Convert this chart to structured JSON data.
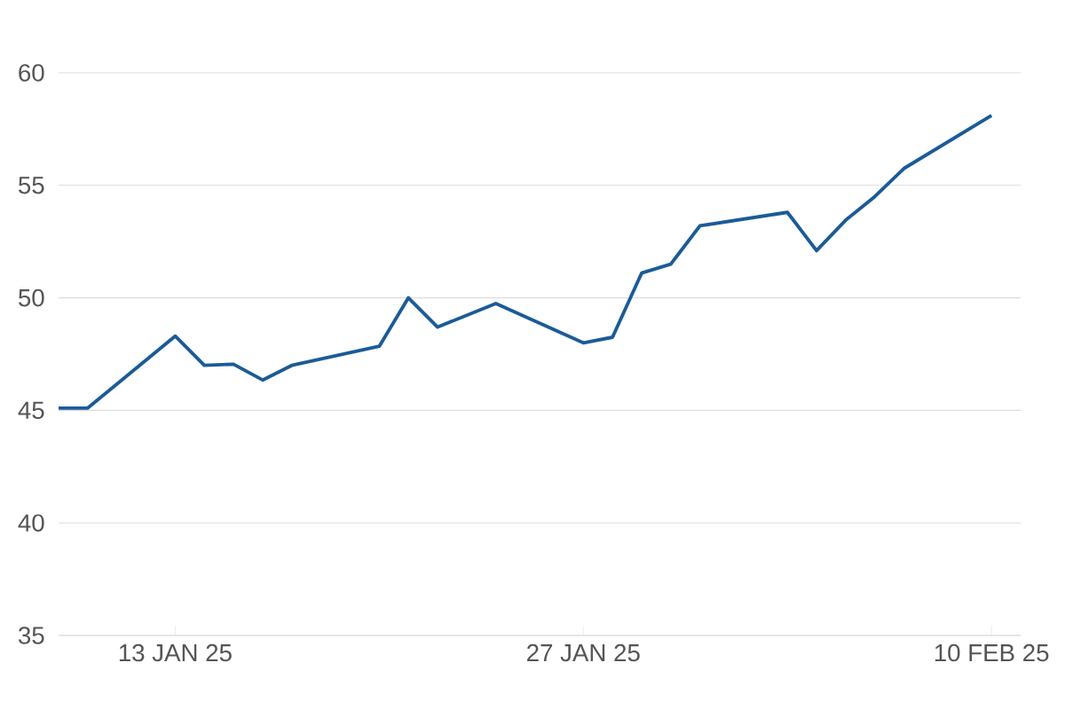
{
  "chart_data": {
    "type": "line",
    "x": [
      "2025-01-09",
      "2025-01-10",
      "2025-01-13",
      "2025-01-14",
      "2025-01-15",
      "2025-01-16",
      "2025-01-17",
      "2025-01-20",
      "2025-01-21",
      "2025-01-22",
      "2025-01-24",
      "2025-01-27",
      "2025-01-28",
      "2025-01-29",
      "2025-01-30",
      "2025-01-31",
      "2025-02-03",
      "2025-02-04",
      "2025-02-05",
      "2025-02-06",
      "2025-02-07",
      "2025-02-10"
    ],
    "series": [
      {
        "color": "#1b5b97",
        "values": [
          45.1,
          45.1,
          48.3,
          47.0,
          47.05,
          46.35,
          47.0,
          47.85,
          50.0,
          48.7,
          49.75,
          48.0,
          48.25,
          51.1,
          51.5,
          53.2,
          53.8,
          52.1,
          53.45,
          54.5,
          55.75,
          58.1
        ]
      }
    ],
    "xlim": [
      "2025-01-09",
      "2025-02-11"
    ],
    "xticks": [
      {
        "value": "2025-01-13",
        "label": "13 JAN 25"
      },
      {
        "value": "2025-01-27",
        "label": "27 JAN 25"
      },
      {
        "value": "2025-02-10",
        "label": "10 FEB 25"
      }
    ],
    "ylim": [
      35,
      60
    ],
    "yticks": [
      35,
      40,
      45,
      50,
      55,
      60
    ],
    "grid": "y",
    "marker": "none",
    "line_style": "solid"
  }
}
